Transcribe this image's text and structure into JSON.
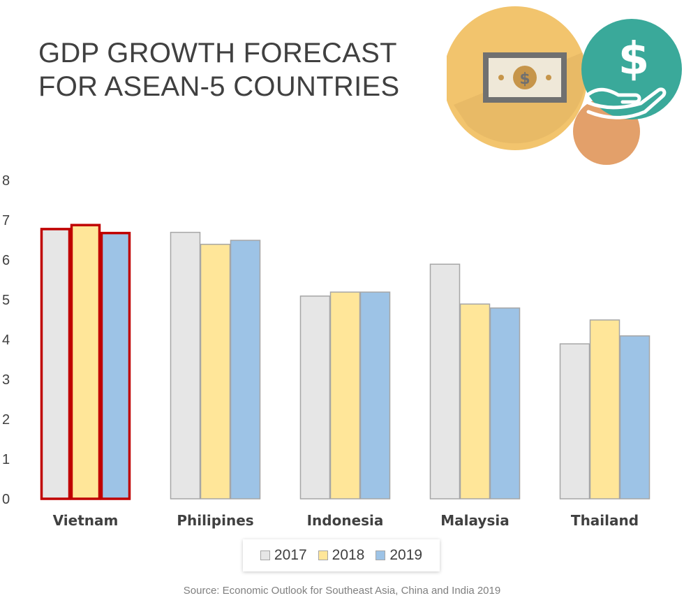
{
  "title_lines": [
    "GDP GROWTH FORECAST",
    "FOR ASEAN-5 COUNTRIES"
  ],
  "source": "Source: Economic Outlook for Southeast Asia, China and India 2019",
  "colors": {
    "series_2017": "#e6e6e6",
    "series_2018": "#ffe699",
    "series_2019": "#9dc3e6",
    "bar_outline": "#a6a6a6",
    "highlight_outline": "#c00000"
  },
  "icons": [
    "money-bill-icon",
    "dollar-hand-icon"
  ],
  "chart_data": {
    "type": "bar",
    "title": "GDP GROWTH FORECAST FOR ASEAN-5 COUNTRIES",
    "categories": [
      "Vietnam",
      "Philipines",
      "Indonesia",
      "Malaysia",
      "Thailand"
    ],
    "series": [
      {
        "name": "2017",
        "values": [
          6.8,
          6.7,
          5.1,
          5.9,
          3.9
        ]
      },
      {
        "name": "2018",
        "values": [
          6.9,
          6.4,
          5.2,
          4.9,
          4.5
        ]
      },
      {
        "name": "2019",
        "values": [
          6.7,
          6.5,
          5.2,
          4.8,
          4.1
        ]
      }
    ],
    "highlighted_category": "Vietnam",
    "ylim": [
      0,
      8
    ],
    "yticks": [
      "0",
      "1",
      "2",
      "3",
      "4",
      "5",
      "6",
      "7",
      "8"
    ],
    "xlabel": "",
    "ylabel": "",
    "grid": false,
    "legend": [
      "2017",
      "2018",
      "2019"
    ],
    "legend_position": "bottom"
  }
}
